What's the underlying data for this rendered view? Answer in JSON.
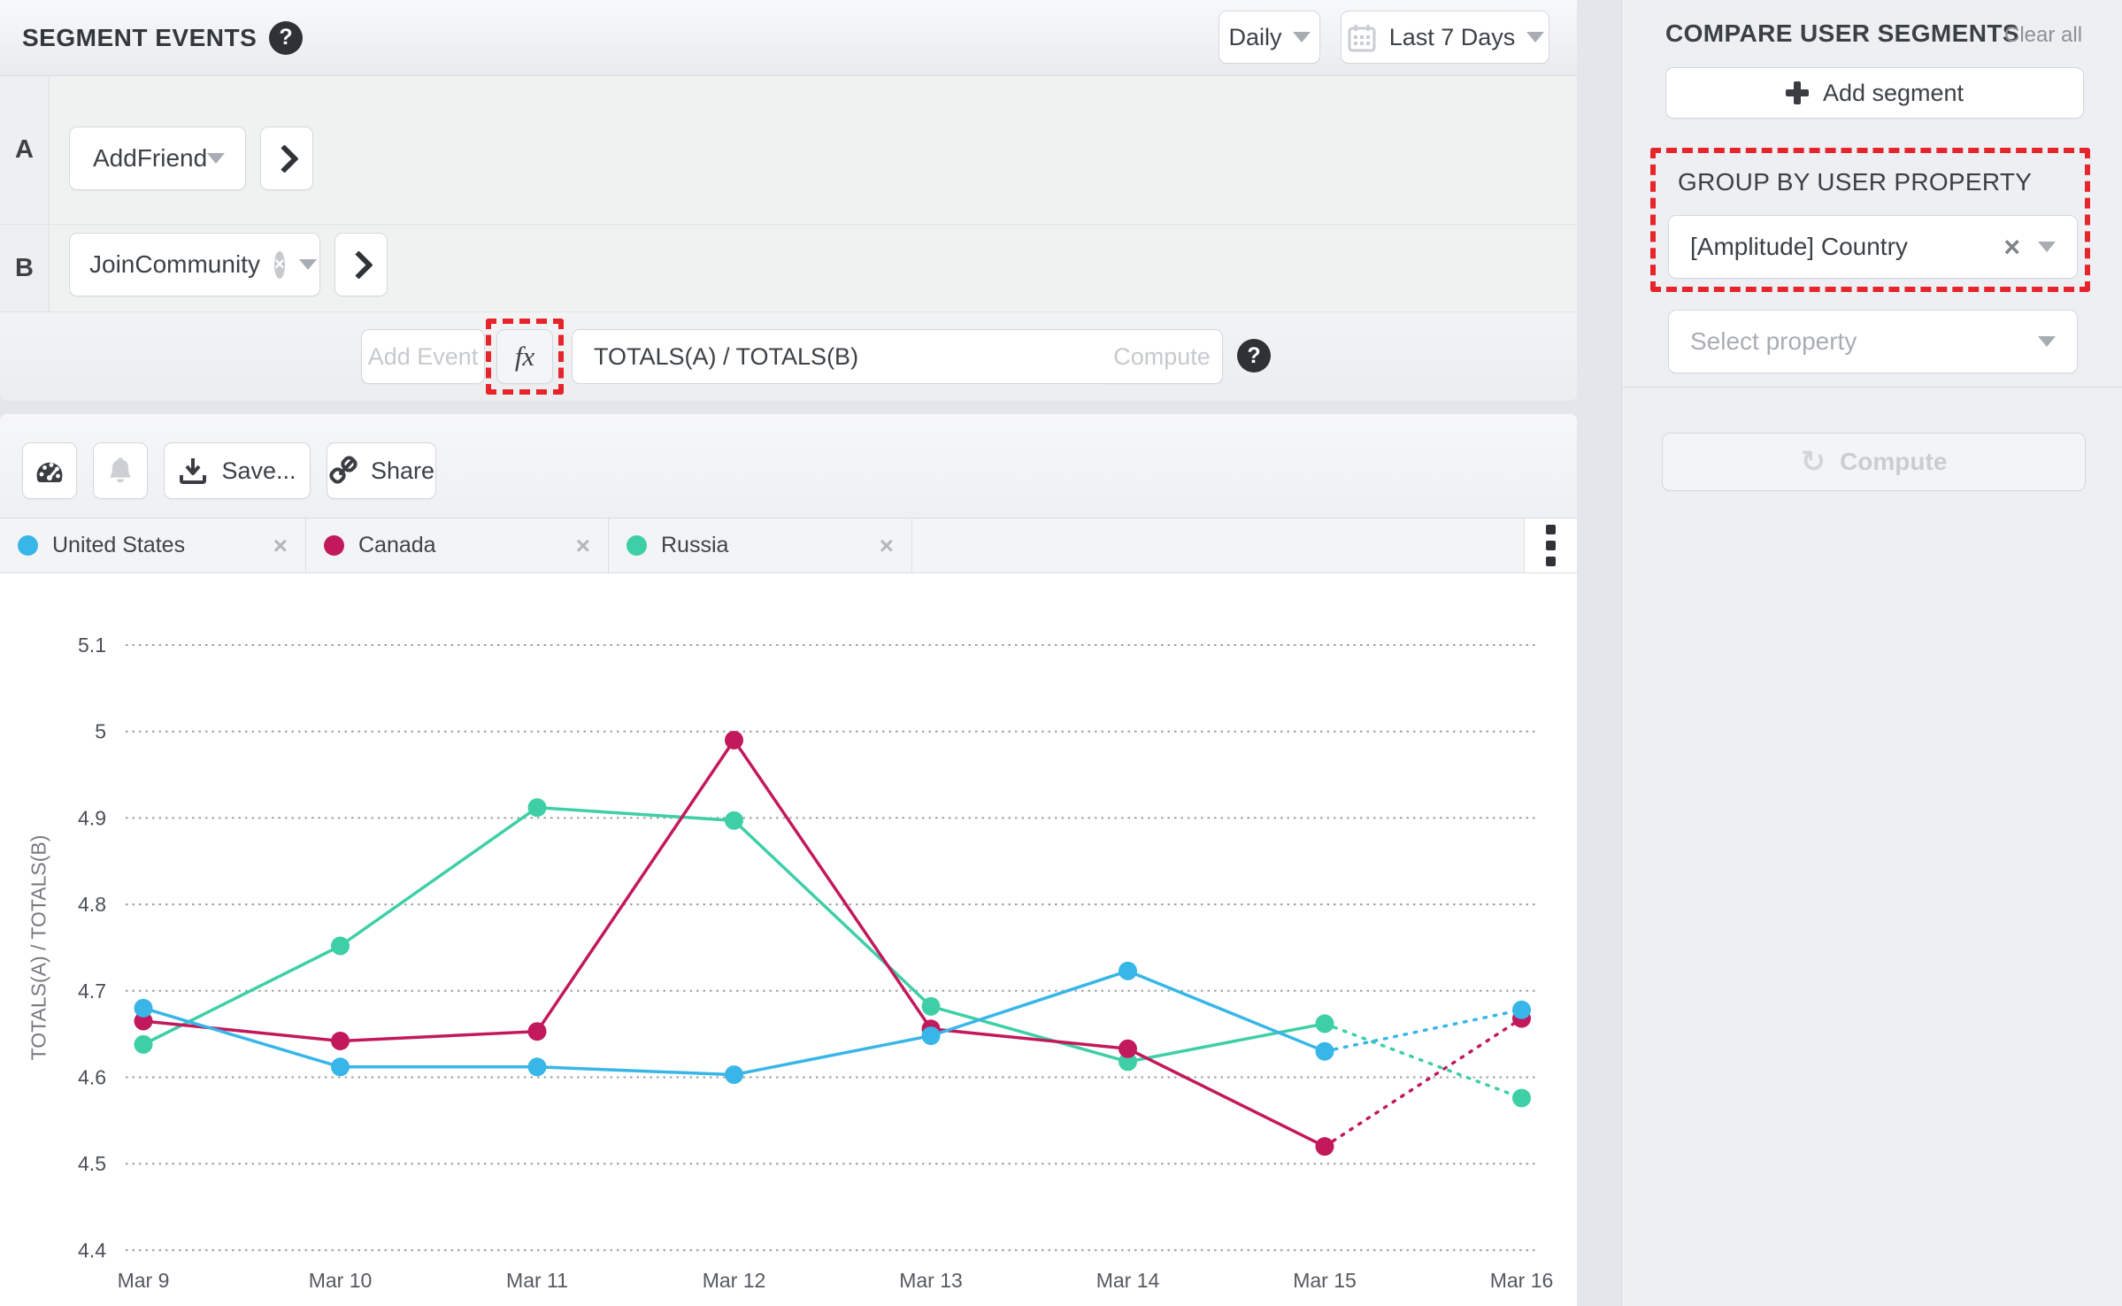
{
  "header": {
    "title": "SEGMENT EVENTS",
    "granularity": "Daily",
    "date_range": "Last 7 Days"
  },
  "events": {
    "row_a": {
      "label": "A",
      "event_name": "AddFriend"
    },
    "row_b": {
      "label": "B",
      "event_name": "JoinCommunity"
    }
  },
  "formula_bar": {
    "add_event_label": "Add Event",
    "fx_label": "fx",
    "formula_value": "TOTALS(A) / TOTALS(B)",
    "compute_label": "Compute"
  },
  "toolbar": {
    "save_label": "Save...",
    "share_label": "Share"
  },
  "sidebar": {
    "title": "COMPARE USER SEGMENTS",
    "clear_all_label": "Clear all",
    "add_segment_label": "Add segment",
    "group_by_label": "GROUP BY USER PROPERTY",
    "group_by_value": "[Amplitude] Country",
    "select_property_placeholder": "Select property",
    "compute_label": "Compute"
  },
  "icons": {
    "help": "?",
    "remove": "×",
    "refresh": "↻"
  },
  "annotation": {
    "highlight_color": "#e8242b",
    "highlighted_elements": [
      "fx-button",
      "group-by-user-property-section"
    ]
  },
  "chart_data": {
    "type": "line",
    "title": "",
    "xlabel": "",
    "ylabel": "TOTALS(A) / TOTALS(B)",
    "categories": [
      "Mar 9",
      "Mar 10",
      "Mar 11",
      "Mar 12",
      "Mar 13",
      "Mar 14",
      "Mar 15",
      "Mar 16"
    ],
    "ylim": [
      4.4,
      5.1
    ],
    "ytick_step": 0.1,
    "grid": "horizontal-dotted",
    "legend_position": "top",
    "dashed_last_segment": true,
    "series": [
      {
        "name": "United States",
        "color": "#38b6e8",
        "values": [
          4.68,
          4.612,
          4.612,
          4.603,
          4.648,
          4.723,
          4.63,
          4.678
        ]
      },
      {
        "name": "Canada",
        "color": "#c2195c",
        "values": [
          4.665,
          4.642,
          4.653,
          4.99,
          4.656,
          4.633,
          4.52,
          4.668
        ]
      },
      {
        "name": "Russia",
        "color": "#3ecfa6",
        "values": [
          4.638,
          4.752,
          4.912,
          4.897,
          4.682,
          4.618,
          4.662,
          4.576
        ]
      }
    ]
  }
}
